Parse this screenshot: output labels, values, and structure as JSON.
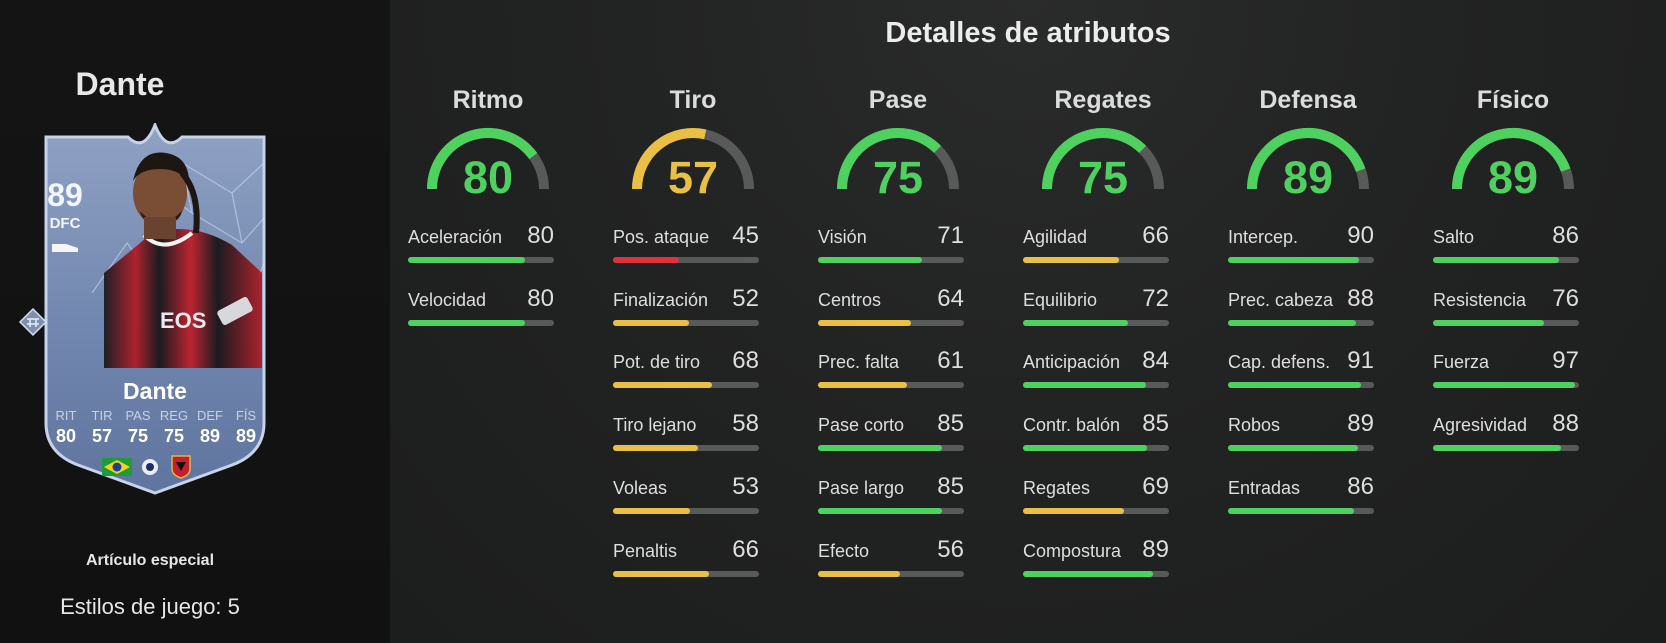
{
  "player": {
    "name": "Dante",
    "card": {
      "rating": "89",
      "position": "DFC",
      "name": "Dante",
      "stat_labels": [
        "RIT",
        "TIR",
        "PAS",
        "REG",
        "DEF",
        "FÍS"
      ],
      "stat_values": [
        "80",
        "57",
        "75",
        "75",
        "89",
        "89"
      ]
    },
    "special_label": "Artículo especial",
    "playstyles": "Estilos de juego: 5"
  },
  "section_title": "Detalles de atributos",
  "colors": {
    "green": "#4fd160",
    "yellow": "#e9bf45",
    "red": "#e0313d",
    "track": "#585959",
    "background": "#1e1f1f"
  },
  "categories": [
    {
      "name": "Ritmo",
      "value": "80",
      "color": "green",
      "attributes": [
        {
          "label": "Aceleración",
          "value": "80",
          "color": "green"
        },
        {
          "label": "Velocidad",
          "value": "80",
          "color": "green"
        }
      ]
    },
    {
      "name": "Tiro",
      "value": "57",
      "color": "yellow",
      "attributes": [
        {
          "label": "Pos. ataque",
          "value": "45",
          "color": "red"
        },
        {
          "label": "Finalización",
          "value": "52",
          "color": "yellow"
        },
        {
          "label": "Pot. de tiro",
          "value": "68",
          "color": "yellow"
        },
        {
          "label": "Tiro lejano",
          "value": "58",
          "color": "yellow"
        },
        {
          "label": "Voleas",
          "value": "53",
          "color": "yellow"
        },
        {
          "label": "Penaltis",
          "value": "66",
          "color": "yellow"
        }
      ]
    },
    {
      "name": "Pase",
      "value": "75",
      "color": "green",
      "attributes": [
        {
          "label": "Visión",
          "value": "71",
          "color": "green"
        },
        {
          "label": "Centros",
          "value": "64",
          "color": "yellow"
        },
        {
          "label": "Prec. falta",
          "value": "61",
          "color": "yellow"
        },
        {
          "label": "Pase corto",
          "value": "85",
          "color": "green"
        },
        {
          "label": "Pase largo",
          "value": "85",
          "color": "green"
        },
        {
          "label": "Efecto",
          "value": "56",
          "color": "yellow"
        }
      ]
    },
    {
      "name": "Regates",
      "value": "75",
      "color": "green",
      "attributes": [
        {
          "label": "Agilidad",
          "value": "66",
          "color": "yellow"
        },
        {
          "label": "Equilibrio",
          "value": "72",
          "color": "green"
        },
        {
          "label": "Anticipación",
          "value": "84",
          "color": "green"
        },
        {
          "label": "Contr. balón",
          "value": "85",
          "color": "green"
        },
        {
          "label": "Regates",
          "value": "69",
          "color": "yellow"
        },
        {
          "label": "Compostura",
          "value": "89",
          "color": "green"
        }
      ]
    },
    {
      "name": "Defensa",
      "value": "89",
      "color": "green",
      "attributes": [
        {
          "label": "Intercep.",
          "value": "90",
          "color": "green"
        },
        {
          "label": "Prec. cabeza",
          "value": "88",
          "color": "green"
        },
        {
          "label": "Cap. defens.",
          "value": "91",
          "color": "green"
        },
        {
          "label": "Robos",
          "value": "89",
          "color": "green"
        },
        {
          "label": "Entradas",
          "value": "86",
          "color": "green"
        }
      ]
    },
    {
      "name": "Físico",
      "value": "89",
      "color": "green",
      "attributes": [
        {
          "label": "Salto",
          "value": "86",
          "color": "green"
        },
        {
          "label": "Resistencia",
          "value": "76",
          "color": "green"
        },
        {
          "label": "Fuerza",
          "value": "97",
          "color": "green"
        },
        {
          "label": "Agresividad",
          "value": "88",
          "color": "green"
        }
      ]
    }
  ]
}
